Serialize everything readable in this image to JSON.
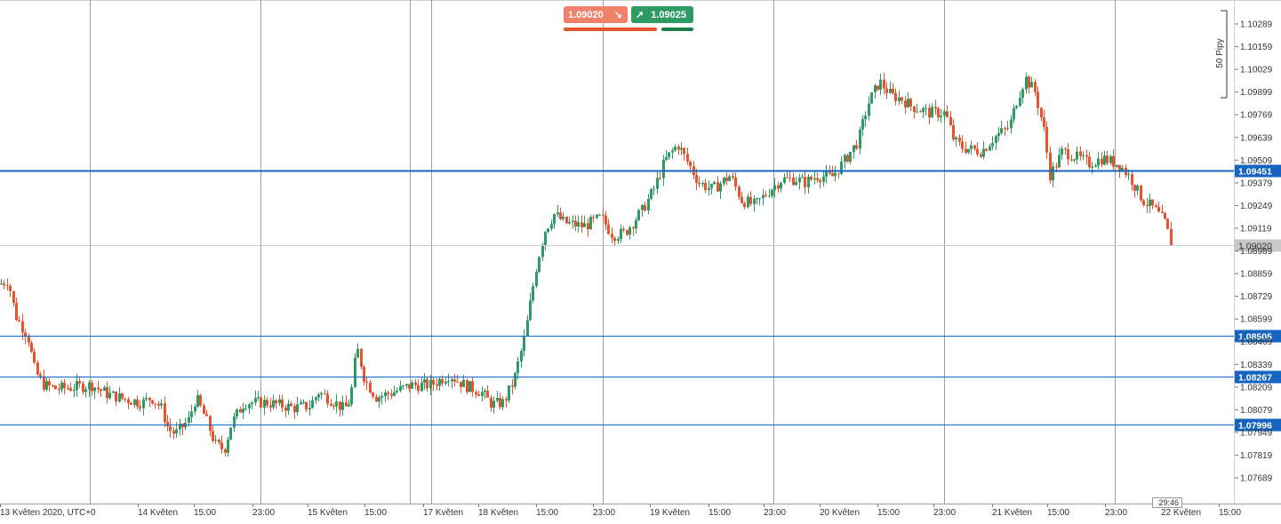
{
  "toolbar": {
    "sell_price": "1.09020",
    "sell_arrow": "↘",
    "buy_price": "1.09025",
    "buy_arrow": "↗"
  },
  "timer": {
    "remaining": "29:46"
  },
  "scale_indicator": {
    "label": "50 Pipy"
  },
  "colors": {
    "bull": "#2e9a64",
    "bear": "#e5532f",
    "level_line": "#1565c0",
    "level_badge": "#1565c0",
    "current_badge": "#c8c8c8",
    "grid": "#9e9e9e"
  },
  "chart_data": {
    "type": "candlestick",
    "symbol_timezone": "UTC+0",
    "ylim": [
      1.0762,
      1.1035
    ],
    "y_ticks": [
      "1.10289",
      "1.10159",
      "1.10029",
      "1.09899",
      "1.09769",
      "1.09639",
      "1.09509",
      "1.09379",
      "1.09249",
      "1.09119",
      "1.08989",
      "1.08859",
      "1.08729",
      "1.08599",
      "1.08469",
      "1.08339",
      "1.08209",
      "1.08079",
      "1.07949",
      "1.07819",
      "1.07689"
    ],
    "x_labels": [
      "13 Květen 2020, UTC+0",
      "14 Květen",
      "15:00",
      "23:00",
      "15 Květen",
      "15:00",
      "17 Květen",
      "18 Květen",
      "15:00",
      "23:00",
      "19 Květen",
      "15:00",
      "23:00",
      "20 Květen",
      "15:00",
      "23:00",
      "21 Květen",
      "15:00",
      "23:00",
      "22 Květen",
      "15:00"
    ],
    "levels": [
      {
        "label": "1.09451",
        "value": 1.09451
      },
      {
        "label": "1.08505",
        "value": 1.08505
      },
      {
        "label": "1.08267",
        "value": 1.08267
      },
      {
        "label": "1.07996",
        "value": 1.07996
      }
    ],
    "current_price": {
      "label": "1.09020",
      "value": 1.0902
    },
    "anchors": [
      [
        0,
        1.088
      ],
      [
        9,
        1.0882
      ],
      [
        17,
        1.0862
      ],
      [
        31,
        1.085
      ],
      [
        39,
        1.083
      ],
      [
        49,
        1.0822
      ],
      [
        63,
        1.082
      ],
      [
        85,
        1.0821
      ],
      [
        103,
        1.0822
      ],
      [
        120,
        1.0817
      ],
      [
        140,
        1.0814
      ],
      [
        160,
        1.0812
      ],
      [
        170,
        1.0815
      ],
      [
        181,
        1.0809
      ],
      [
        189,
        1.0797
      ],
      [
        197,
        1.0794
      ],
      [
        212,
        1.0802
      ],
      [
        220,
        1.0815
      ],
      [
        230,
        1.0804
      ],
      [
        242,
        1.0788
      ],
      [
        252,
        1.0785
      ],
      [
        260,
        1.08
      ],
      [
        274,
        1.0812
      ],
      [
        300,
        1.0812
      ],
      [
        330,
        1.0809
      ],
      [
        348,
        1.081
      ],
      [
        358,
        1.0818
      ],
      [
        377,
        1.0812
      ],
      [
        387,
        1.0808
      ],
      [
        394,
        1.0814
      ],
      [
        401,
        1.0844
      ],
      [
        410,
        1.0825
      ],
      [
        423,
        1.0815
      ],
      [
        442,
        1.0818
      ],
      [
        463,
        1.0822
      ],
      [
        484,
        1.0822
      ],
      [
        505,
        1.0828
      ],
      [
        522,
        1.0822
      ],
      [
        541,
        1.0818
      ],
      [
        553,
        1.0811
      ],
      [
        566,
        1.0812
      ],
      [
        578,
        1.0825
      ],
      [
        590,
        1.085
      ],
      [
        603,
        1.089
      ],
      [
        612,
        1.091
      ],
      [
        623,
        1.092
      ],
      [
        635,
        1.0915
      ],
      [
        656,
        1.0913
      ],
      [
        676,
        1.0918
      ],
      [
        689,
        1.0908
      ],
      [
        702,
        1.0909
      ],
      [
        722,
        1.0922
      ],
      [
        736,
        1.0935
      ],
      [
        747,
        1.095
      ],
      [
        762,
        1.096
      ],
      [
        775,
        1.0948
      ],
      [
        786,
        1.0938
      ],
      [
        801,
        1.0934
      ],
      [
        821,
        1.0942
      ],
      [
        834,
        1.0928
      ],
      [
        849,
        1.0925
      ],
      [
        864,
        1.0933
      ],
      [
        879,
        1.094
      ],
      [
        895,
        1.094
      ],
      [
        905,
        1.0938
      ],
      [
        919,
        1.0942
      ],
      [
        935,
        1.0941
      ],
      [
        949,
        1.095
      ],
      [
        965,
        1.0962
      ],
      [
        976,
        1.0983
      ],
      [
        989,
        1.0996
      ],
      [
        1002,
        1.0988
      ],
      [
        1014,
        1.0986
      ],
      [
        1024,
        1.0982
      ],
      [
        1045,
        1.0978
      ],
      [
        1063,
        1.0978
      ],
      [
        1073,
        1.0962
      ],
      [
        1083,
        1.0958
      ],
      [
        1104,
        1.0956
      ],
      [
        1118,
        1.0964
      ],
      [
        1135,
        1.097
      ],
      [
        1144,
        1.0986
      ],
      [
        1153,
        1.0998
      ],
      [
        1164,
        1.099
      ],
      [
        1174,
        1.0968
      ],
      [
        1181,
        1.0942
      ],
      [
        1195,
        1.0956
      ],
      [
        1209,
        1.0953
      ],
      [
        1225,
        1.0949
      ],
      [
        1240,
        1.0952
      ],
      [
        1260,
        1.0948
      ],
      [
        1272,
        1.094
      ],
      [
        1285,
        1.0928
      ],
      [
        1298,
        1.0923
      ],
      [
        1310,
        1.0915
      ],
      [
        1318,
        1.0902
      ]
    ],
    "grid": true,
    "legend": "none"
  }
}
